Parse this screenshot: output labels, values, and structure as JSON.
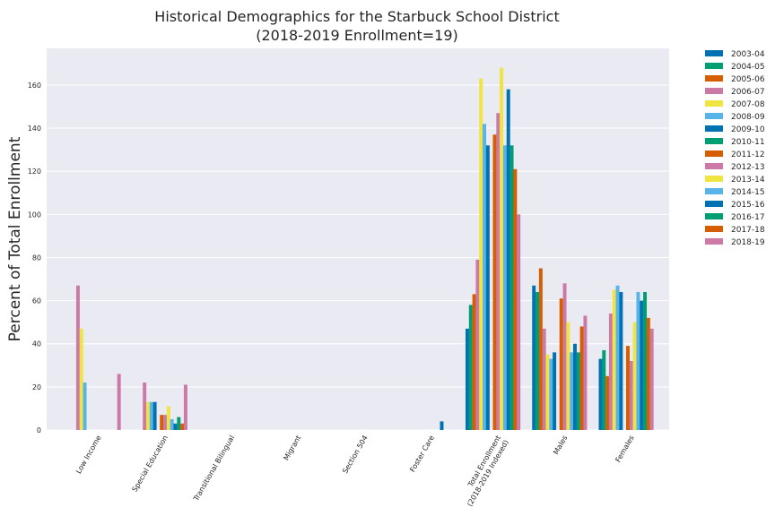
{
  "chart_data": {
    "type": "bar",
    "title": "Historical Demographics for the Starbuck School District",
    "subtitle": "(2018-2019 Enrollment=19)",
    "xlabel": "",
    "ylabel": "Percent of Total Enrollment",
    "ylim": [
      0,
      177
    ],
    "yticks": [
      0,
      20,
      40,
      60,
      80,
      100,
      120,
      140,
      160
    ],
    "grid": true,
    "legend_position": "outside-right",
    "categories": [
      "Low Income",
      "Special Education",
      "Transitional Bilingual",
      "Migrant",
      "Section 504",
      "Foster Care",
      "Total Enrollment\n(2018-2019 Indexed)",
      "Males",
      "Females"
    ],
    "series": [
      {
        "name": "2003-04",
        "color": "#0072b2",
        "values": [
          0,
          0,
          0,
          0,
          0,
          0,
          47,
          67,
          33
        ]
      },
      {
        "name": "2004-05",
        "color": "#009e73",
        "values": [
          0,
          0,
          0,
          0,
          0,
          0,
          58,
          64,
          37
        ]
      },
      {
        "name": "2005-06",
        "color": "#d55e00",
        "values": [
          0,
          0,
          0,
          0,
          0,
          0,
          63,
          75,
          25
        ]
      },
      {
        "name": "2006-07",
        "color": "#cc79a7",
        "values": [
          67,
          22,
          0,
          0,
          0,
          0,
          79,
          47,
          54
        ]
      },
      {
        "name": "2007-08",
        "color": "#f0e442",
        "values": [
          47,
          13,
          0,
          0,
          0,
          0,
          163,
          35,
          65
        ]
      },
      {
        "name": "2008-09",
        "color": "#56b4e9",
        "values": [
          22,
          13,
          0,
          0,
          0,
          0,
          142,
          33,
          67
        ]
      },
      {
        "name": "2009-10",
        "color": "#0072b2",
        "values": [
          0,
          13,
          0,
          0,
          0,
          0,
          132,
          36,
          64
        ]
      },
      {
        "name": "2010-11",
        "color": "#009e73",
        "values": [
          0,
          0,
          0,
          0,
          0,
          0,
          0,
          0,
          0
        ]
      },
      {
        "name": "2011-12",
        "color": "#d55e00",
        "values": [
          0,
          7,
          0,
          0,
          0,
          0,
          137,
          61,
          39
        ]
      },
      {
        "name": "2012-13",
        "color": "#cc79a7",
        "values": [
          0,
          7,
          0,
          0,
          0,
          0,
          147,
          68,
          32
        ]
      },
      {
        "name": "2013-14",
        "color": "#f0e442",
        "values": [
          0,
          11,
          0,
          0,
          0,
          0,
          168,
          50,
          50
        ]
      },
      {
        "name": "2014-15",
        "color": "#56b4e9",
        "values": [
          0,
          5,
          0,
          0,
          0,
          0,
          132,
          36,
          64
        ]
      },
      {
        "name": "2015-16",
        "color": "#0072b2",
        "values": [
          0,
          3,
          0,
          0,
          0,
          4,
          158,
          40,
          60
        ]
      },
      {
        "name": "2016-17",
        "color": "#009e73",
        "values": [
          0,
          6,
          0,
          0,
          0,
          0,
          132,
          36,
          64
        ]
      },
      {
        "name": "2017-18",
        "color": "#d55e00",
        "values": [
          0,
          3,
          0,
          0,
          0,
          0,
          121,
          48,
          52
        ]
      },
      {
        "name": "2018-19",
        "color": "#cc79a7",
        "values": [
          26,
          21,
          0,
          0,
          0,
          0,
          100,
          53,
          47
        ]
      }
    ]
  }
}
